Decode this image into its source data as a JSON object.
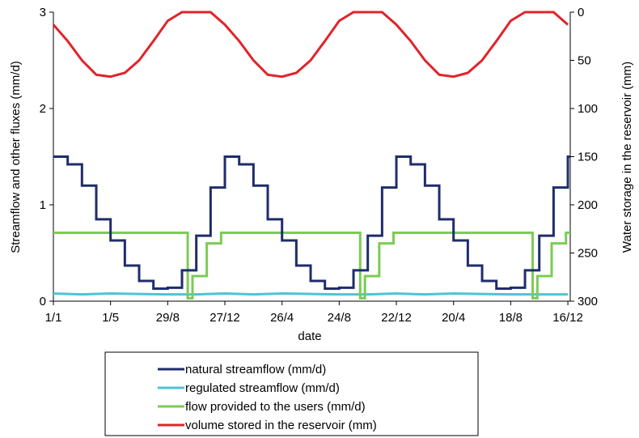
{
  "chart_data": {
    "type": "line",
    "xlabel": "date",
    "ylabel_left": "Streamflow and other fluxes (mm/d)",
    "ylabel_right": "Water storage in the reservoir (mm)",
    "x_tick_labels": [
      "1/1",
      "1/5",
      "29/8",
      "27/12",
      "26/4",
      "24/8",
      "22/12",
      "20/4",
      "18/8",
      "16/12"
    ],
    "ylim_left": [
      0,
      3
    ],
    "yticks_left": [
      "0",
      "1",
      "2",
      "3"
    ],
    "ylim_right_inverted": [
      300,
      0
    ],
    "yticks_right": [
      "0",
      "50",
      "100",
      "150",
      "200",
      "250",
      "300"
    ],
    "grid": false,
    "legend_position": "bottom",
    "series": [
      {
        "name": "natural streamflow (mm/d)",
        "color": "#1f2d6b",
        "axis": "left",
        "step": true,
        "x_day": [
          0,
          30,
          60,
          90,
          120,
          150,
          180,
          210,
          240,
          270,
          300,
          330,
          360,
          390,
          420,
          450,
          480,
          510,
          540,
          570,
          600,
          630,
          660,
          690,
          720,
          750,
          780,
          810,
          840,
          870,
          900,
          930,
          960,
          990,
          1020,
          1050,
          1080
        ],
        "values": [
          1.5,
          1.42,
          1.2,
          0.85,
          0.63,
          0.37,
          0.21,
          0.13,
          0.14,
          0.32,
          0.68,
          1.18,
          1.5,
          1.42,
          1.2,
          0.85,
          0.63,
          0.37,
          0.21,
          0.13,
          0.14,
          0.32,
          0.68,
          1.18,
          1.5,
          1.42,
          1.2,
          0.85,
          0.63,
          0.37,
          0.21,
          0.13,
          0.14,
          0.32,
          0.68,
          1.18,
          1.5
        ]
      },
      {
        "name": "regulated streamflow (mm/d)",
        "color": "#4fc3d6",
        "axis": "left",
        "step": false,
        "x_day": [
          0,
          60,
          120,
          180,
          240,
          300,
          360,
          420,
          480,
          540,
          600,
          660,
          720,
          780,
          840,
          900,
          960,
          1020,
          1080
        ],
        "values": [
          0.08,
          0.07,
          0.08,
          0.075,
          0.07,
          0.07,
          0.08,
          0.07,
          0.08,
          0.075,
          0.07,
          0.07,
          0.08,
          0.07,
          0.08,
          0.075,
          0.07,
          0.07,
          0.07
        ]
      },
      {
        "name": "flow provided to the users (mm/d)",
        "color": "#7ccb55",
        "axis": "left",
        "step": true,
        "x_day": [
          0,
          282,
          292,
          322,
          352,
          644,
          654,
          684,
          714,
          1006,
          1016,
          1046,
          1076,
          1085
        ],
        "values": [
          0.71,
          0.03,
          0.26,
          0.6,
          0.71,
          0.03,
          0.26,
          0.6,
          0.71,
          0.03,
          0.26,
          0.6,
          0.71,
          0.71
        ]
      },
      {
        "name": "volume stored in the reservoir (mm)",
        "color": "#e0242a",
        "axis": "right",
        "step": false,
        "x_day": [
          0,
          30,
          60,
          90,
          120,
          150,
          180,
          210,
          240,
          270,
          300,
          330,
          360,
          390,
          420,
          450,
          480,
          510,
          540,
          570,
          600,
          630,
          660,
          690,
          720,
          750,
          780,
          810,
          840,
          870,
          900,
          930,
          960,
          990,
          1020,
          1050,
          1080
        ],
        "values": [
          13,
          30,
          50,
          65,
          67,
          63,
          50,
          30,
          9,
          0,
          0,
          0,
          13,
          30,
          50,
          65,
          67,
          63,
          50,
          30,
          9,
          0,
          0,
          0,
          13,
          30,
          50,
          65,
          67,
          63,
          50,
          30,
          9,
          0,
          0,
          0,
          13
        ]
      }
    ]
  }
}
